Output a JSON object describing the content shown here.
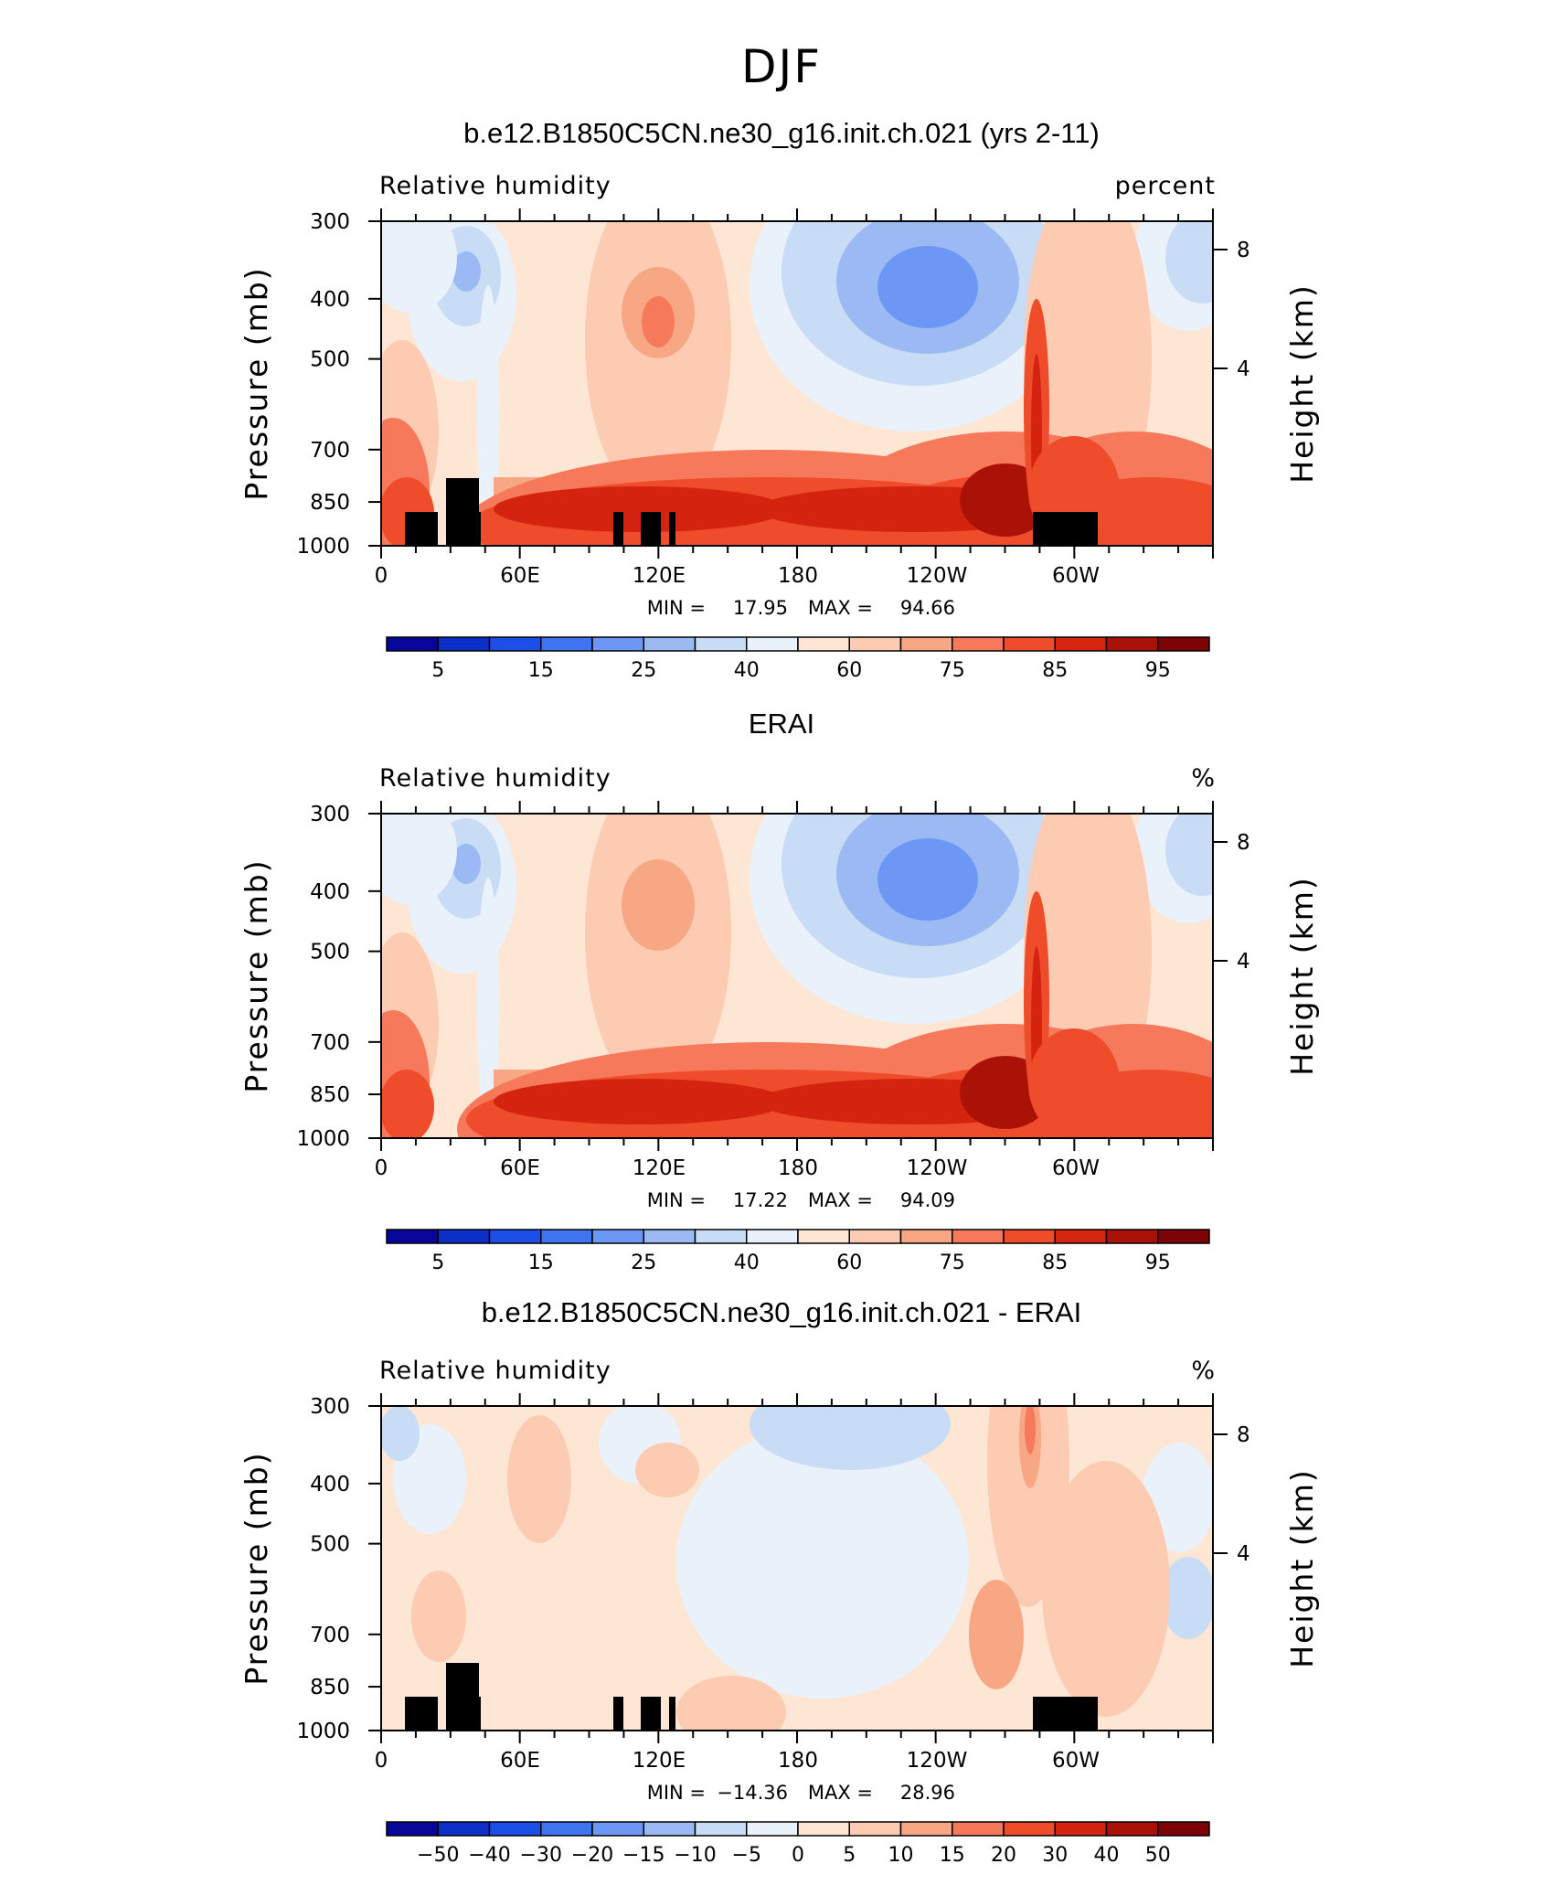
{
  "figure": {
    "title": "DJF",
    "panels": [
      {
        "title": "b.e12.B1850C5CN.ne30_g16.init.ch.021 (yrs 2-11)",
        "left_label": "Relative humidity",
        "right_label": "percent",
        "stats": {
          "min_label": "MIN =",
          "min": "17.95",
          "max_label": "MAX =",
          "max": "94.66"
        },
        "colorbar_labels": [
          "5",
          "15",
          "25",
          "40",
          "60",
          "75",
          "85",
          "95"
        ]
      },
      {
        "title": "ERAI",
        "left_label": "Relative humidity",
        "right_label": "%",
        "stats": {
          "min_label": "MIN =",
          "min": "17.22",
          "max_label": "MAX =",
          "max": "94.09"
        },
        "colorbar_labels": [
          "5",
          "15",
          "25",
          "40",
          "60",
          "75",
          "85",
          "95"
        ]
      },
      {
        "title": "b.e12.B1850C5CN.ne30_g16.init.ch.021 - ERAI",
        "left_label": "Relative humidity",
        "right_label": "%",
        "stats": {
          "min_label": "MIN =",
          "min": "−14.36",
          "max_label": "MAX =",
          "max": "28.96"
        },
        "colorbar_labels": [
          "−50",
          "−40",
          "−30",
          "−20",
          "−15",
          "−10",
          "−5",
          "0",
          "5",
          "10",
          "15",
          "20",
          "30",
          "40",
          "50"
        ]
      }
    ],
    "axes": {
      "ylabel": "Pressure (mb)",
      "y2label": "Height (km)",
      "pressure_ticks": [
        "300",
        "400",
        "500",
        "700",
        "850",
        "1000"
      ],
      "height_ticks": [
        "8",
        "4"
      ],
      "lon_ticks": [
        "0",
        "60E",
        "120E",
        "180",
        "120W",
        "60W"
      ]
    },
    "colors": {
      "abs_scale": [
        "#08069a",
        "#0c2fc7",
        "#1c4fe8",
        "#3f74f0",
        "#6c97f4",
        "#9bbaf4",
        "#c8dcf6",
        "#e9f2fb",
        "#fde6d4",
        "#fccbb1",
        "#f8a785",
        "#f5795a",
        "#ee4c2a",
        "#d4240f",
        "#ab1207",
        "#7c0404"
      ],
      "diff_scale": [
        "#08069a",
        "#0c2fc7",
        "#1c4fe8",
        "#3f74f0",
        "#6c97f4",
        "#9bbaf4",
        "#c8dcf6",
        "#e9f2fb",
        "#fde6d4",
        "#fccbb1",
        "#f8a785",
        "#f5795a",
        "#ee4c2a",
        "#d4240f",
        "#ab1207",
        "#7c0404"
      ],
      "topography": "#000000"
    }
  },
  "chart_data": [
    {
      "type": "heatmap",
      "title": "b.e12.B1850C5CN.ne30_g16.init.ch.021 (yrs 2-11)",
      "xlabel": "",
      "ylabel": "Pressure (mb)",
      "y2label": "Height (km)",
      "x_ticks": [
        "0",
        "60E",
        "120E",
        "180",
        "120W",
        "60W"
      ],
      "y_ticks": [
        300,
        400,
        500,
        700,
        850,
        1000
      ],
      "y_scale": "log-pressure",
      "levels": [
        5,
        10,
        15,
        20,
        25,
        30,
        40,
        50,
        60,
        70,
        75,
        80,
        85,
        90,
        95
      ],
      "min": 17.95,
      "max": 94.66,
      "units": "percent"
    },
    {
      "type": "heatmap",
      "title": "ERAI",
      "xlabel": "",
      "ylabel": "Pressure (mb)",
      "y2label": "Height (km)",
      "x_ticks": [
        "0",
        "60E",
        "120E",
        "180",
        "120W",
        "60W"
      ],
      "y_ticks": [
        300,
        400,
        500,
        700,
        850,
        1000
      ],
      "y_scale": "log-pressure",
      "levels": [
        5,
        10,
        15,
        20,
        25,
        30,
        40,
        50,
        60,
        70,
        75,
        80,
        85,
        90,
        95
      ],
      "min": 17.22,
      "max": 94.09,
      "units": "%"
    },
    {
      "type": "heatmap",
      "title": "b.e12.B1850C5CN.ne30_g16.init.ch.021 - ERAI",
      "xlabel": "",
      "ylabel": "Pressure (mb)",
      "y2label": "Height (km)",
      "x_ticks": [
        "0",
        "60E",
        "120E",
        "180",
        "120W",
        "60W"
      ],
      "y_ticks": [
        300,
        400,
        500,
        700,
        850,
        1000
      ],
      "y_scale": "log-pressure",
      "levels": [
        -50,
        -40,
        -30,
        -20,
        -15,
        -10,
        -5,
        0,
        5,
        10,
        15,
        20,
        30,
        40,
        50
      ],
      "min": -14.36,
      "max": 28.96,
      "units": "%"
    }
  ]
}
